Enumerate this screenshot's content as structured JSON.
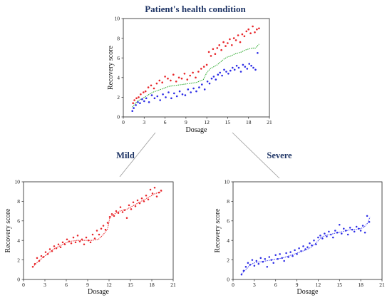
{
  "figure": {
    "title": "Patient's health condition",
    "branch_labels": [
      "Mild",
      "Severe"
    ]
  },
  "colors": {
    "mild_points": "#e8262a",
    "mild_fit": "#e8262a",
    "severe_points": "#2c2ce6",
    "severe_fit": "#4a4aef",
    "overall_fit": "#2eaa2e",
    "title_text": "#1f3566"
  },
  "chart_data": [
    {
      "id": "overall",
      "type": "scatter",
      "title": "Patient's health condition",
      "xlabel": "Dosage",
      "ylabel": "Recovery score",
      "xlim": [
        0,
        21
      ],
      "ylim": [
        0,
        10
      ],
      "xticks": [
        0,
        3,
        6,
        9,
        12,
        15,
        18,
        21
      ],
      "yticks": [
        0,
        2,
        4,
        6,
        8,
        10
      ],
      "grid": false,
      "series": [
        {
          "kind": "points",
          "color": "red",
          "x": [
            1.4,
            1.6,
            1.9,
            2.2,
            2.5,
            2.9,
            3.2,
            3.6,
            4.0,
            4.4,
            4.8,
            5.2,
            5.6,
            6.0,
            6.4,
            6.8,
            7.2,
            7.6,
            8.0,
            8.4,
            8.8,
            9.2,
            9.6,
            10.0,
            10.4,
            10.8,
            11.2,
            11.6,
            12.0,
            12.3,
            12.6,
            12.9,
            13.2,
            13.5,
            13.8,
            14.1,
            14.4,
            14.7,
            15.0,
            15.3,
            15.6,
            15.9,
            16.2,
            16.5,
            16.8,
            17.1,
            17.4,
            17.7,
            18.0,
            18.3,
            18.6,
            18.9,
            19.2,
            19.5
          ],
          "y": [
            1.4,
            1.7,
            1.9,
            2.0,
            2.3,
            2.5,
            2.6,
            3.0,
            3.2,
            2.9,
            3.4,
            3.7,
            3.5,
            4.1,
            3.9,
            3.7,
            4.3,
            3.6,
            4.0,
            3.9,
            4.4,
            3.8,
            4.2,
            4.5,
            4.0,
            4.6,
            4.9,
            5.1,
            5.3,
            6.6,
            6.2,
            6.9,
            6.4,
            7.0,
            7.3,
            6.8,
            7.6,
            7.2,
            7.5,
            7.9,
            7.3,
            8.0,
            7.8,
            8.3,
            7.6,
            8.4,
            8.2,
            8.7,
            8.9,
            8.5,
            9.2,
            8.6,
            8.9,
            9.0
          ]
        },
        {
          "kind": "points",
          "color": "blue",
          "x": [
            1.3,
            1.5,
            1.8,
            2.1,
            2.4,
            2.7,
            3.0,
            3.3,
            3.7,
            4.1,
            4.5,
            4.9,
            5.3,
            5.7,
            6.1,
            6.5,
            6.9,
            7.3,
            7.7,
            8.1,
            8.5,
            8.9,
            9.3,
            9.7,
            10.1,
            10.5,
            10.9,
            11.3,
            11.7,
            12.1,
            12.4,
            12.7,
            13.0,
            13.3,
            13.6,
            13.9,
            14.2,
            14.5,
            14.8,
            15.1,
            15.4,
            15.7,
            16.0,
            16.3,
            16.6,
            16.9,
            17.2,
            17.5,
            17.8,
            18.1,
            18.4,
            18.7,
            19.0,
            19.3
          ],
          "y": [
            0.6,
            0.9,
            1.2,
            1.5,
            1.4,
            1.8,
            1.6,
            1.9,
            1.5,
            2.2,
            1.9,
            2.1,
            1.7,
            2.3,
            2.0,
            2.5,
            1.9,
            2.4,
            2.1,
            2.6,
            2.3,
            2.2,
            2.8,
            2.5,
            2.9,
            2.6,
            3.0,
            3.3,
            2.8,
            3.6,
            3.4,
            3.9,
            4.1,
            3.8,
            4.3,
            4.5,
            4.2,
            4.8,
            4.6,
            4.4,
            4.7,
            5.0,
            4.8,
            5.2,
            5.0,
            4.6,
            5.3,
            5.1,
            4.9,
            5.4,
            5.2,
            5.0,
            4.8,
            6.5
          ]
        },
        {
          "kind": "fit",
          "color": "green",
          "x": [
            1.3,
            2.0,
            2.8,
            3.5,
            4.2,
            5.0,
            5.8,
            6.5,
            7.5,
            8.5,
            9.5,
            10.5,
            11.5,
            12.0,
            12.5,
            13.0,
            13.5,
            14.0,
            14.5,
            15.0,
            15.5,
            16.0,
            16.5,
            17.0,
            17.5,
            18.0,
            18.5,
            19.0,
            19.5
          ],
          "y": [
            1.0,
            1.6,
            1.9,
            2.2,
            2.5,
            2.7,
            2.9,
            3.1,
            3.2,
            3.3,
            3.4,
            3.5,
            3.8,
            4.5,
            4.9,
            5.1,
            5.3,
            5.6,
            5.9,
            6.1,
            6.2,
            6.4,
            6.5,
            6.6,
            6.8,
            6.9,
            7.0,
            7.0,
            7.4
          ]
        }
      ]
    },
    {
      "id": "mild",
      "type": "scatter",
      "title": "",
      "xlabel": "Dosage",
      "ylabel": "Recovery score",
      "xlim": [
        0,
        21
      ],
      "ylim": [
        0,
        10
      ],
      "xticks": [
        0,
        3,
        6,
        9,
        12,
        15,
        18,
        21
      ],
      "yticks": [
        0,
        2,
        4,
        6,
        8,
        10
      ],
      "grid": false,
      "series": [
        {
          "kind": "points",
          "color": "red",
          "x": [
            1.3,
            1.6,
            1.9,
            2.2,
            2.5,
            2.8,
            3.1,
            3.4,
            3.7,
            4.0,
            4.3,
            4.6,
            4.9,
            5.2,
            5.5,
            5.8,
            6.1,
            6.4,
            6.7,
            7.0,
            7.3,
            7.6,
            7.9,
            8.2,
            8.5,
            8.8,
            9.1,
            9.4,
            9.7,
            10.0,
            10.3,
            10.6,
            10.9,
            11.2,
            11.5,
            11.8,
            12.1,
            12.4,
            12.7,
            13.0,
            13.3,
            13.6,
            13.9,
            14.2,
            14.5,
            14.8,
            15.1,
            15.4,
            15.7,
            16.0,
            16.3,
            16.6,
            16.9,
            17.2,
            17.5,
            17.8,
            18.1,
            18.4,
            18.7,
            19.0,
            19.3
          ],
          "y": [
            1.3,
            1.6,
            2.2,
            1.9,
            2.4,
            2.3,
            2.8,
            2.6,
            3.1,
            2.9,
            3.4,
            3.2,
            3.6,
            3.3,
            3.8,
            3.6,
            4.1,
            3.9,
            3.7,
            4.3,
            3.8,
            4.5,
            3.9,
            4.1,
            3.6,
            4.3,
            4.0,
            3.8,
            4.6,
            4.2,
            5.0,
            4.6,
            5.2,
            5.5,
            5.1,
            5.8,
            6.4,
            6.7,
            6.5,
            7.0,
            6.8,
            7.4,
            6.9,
            7.1,
            6.3,
            7.6,
            7.2,
            7.9,
            7.5,
            8.1,
            7.8,
            8.3,
            8.0,
            8.6,
            8.2,
            9.2,
            8.8,
            9.4,
            8.5,
            8.9,
            9.1
          ]
        },
        {
          "kind": "fit",
          "color": "red",
          "x": [
            1.3,
            2.0,
            2.8,
            3.5,
            4.2,
            5.0,
            5.8,
            6.5,
            7.5,
            8.5,
            9.5,
            10.5,
            11.2,
            11.8,
            12.1,
            12.5,
            13.0,
            13.5,
            14.0,
            14.5,
            15.0,
            15.5,
            16.0,
            16.5,
            17.0,
            17.5,
            18.0,
            18.5,
            19.0,
            19.5
          ],
          "y": [
            1.3,
            1.8,
            2.3,
            2.7,
            3.1,
            3.4,
            3.7,
            3.9,
            4.0,
            4.0,
            4.0,
            4.1,
            4.6,
            5.2,
            6.3,
            6.6,
            6.8,
            7.0,
            7.1,
            7.2,
            7.4,
            7.6,
            7.8,
            8.0,
            8.2,
            8.4,
            8.6,
            8.8,
            8.9,
            9.1
          ]
        }
      ]
    },
    {
      "id": "severe",
      "type": "scatter",
      "title": "",
      "xlabel": "Dosage",
      "ylabel": "Recovery score",
      "xlim": [
        0,
        21
      ],
      "ylim": [
        0,
        10
      ],
      "xticks": [
        0,
        3,
        6,
        9,
        12,
        15,
        18,
        21
      ],
      "yticks": [
        0,
        2,
        4,
        6,
        8,
        10
      ],
      "grid": false,
      "series": [
        {
          "kind": "points",
          "color": "blue",
          "x": [
            1.2,
            1.5,
            1.8,
            2.1,
            2.4,
            2.7,
            3.0,
            3.3,
            3.6,
            3.9,
            4.2,
            4.5,
            4.8,
            5.1,
            5.4,
            5.7,
            6.0,
            6.3,
            6.6,
            6.9,
            7.2,
            7.5,
            7.8,
            8.1,
            8.4,
            8.7,
            9.0,
            9.3,
            9.6,
            9.9,
            10.2,
            10.5,
            10.8,
            11.1,
            11.4,
            11.7,
            12.0,
            12.3,
            12.6,
            12.9,
            13.2,
            13.5,
            13.8,
            14.1,
            14.4,
            14.7,
            15.0,
            15.3,
            15.6,
            15.9,
            16.2,
            16.5,
            16.8,
            17.1,
            17.4,
            17.7,
            18.0,
            18.3,
            18.6,
            18.9,
            19.2
          ],
          "y": [
            0.5,
            0.9,
            1.3,
            1.7,
            1.5,
            2.0,
            1.4,
            1.9,
            1.6,
            2.2,
            1.8,
            2.1,
            1.3,
            2.3,
            2.0,
            1.7,
            2.5,
            2.1,
            2.6,
            2.2,
            1.9,
            2.7,
            2.3,
            2.8,
            2.4,
            3.0,
            2.6,
            3.2,
            2.9,
            3.4,
            3.1,
            3.3,
            3.7,
            3.5,
            4.0,
            3.6,
            4.3,
            4.5,
            4.2,
            4.7,
            4.4,
            4.9,
            4.6,
            4.3,
            5.0,
            4.8,
            5.6,
            4.7,
            5.2,
            5.0,
            4.6,
            5.3,
            5.1,
            4.9,
            5.4,
            5.2,
            5.0,
            5.5,
            4.8,
            6.5,
            5.9
          ]
        },
        {
          "kind": "fit",
          "color": "blue",
          "x": [
            1.2,
            1.8,
            2.4,
            3.0,
            3.8,
            4.6,
            5.4,
            6.2,
            7.0,
            7.8,
            8.6,
            9.4,
            10.2,
            11.0,
            11.8,
            12.4,
            13.0,
            13.6,
            14.2,
            14.8,
            15.4,
            16.0,
            16.6,
            17.2,
            17.8,
            18.4,
            19.0,
            19.3
          ],
          "y": [
            0.6,
            1.0,
            1.5,
            1.7,
            1.8,
            1.9,
            2.0,
            2.1,
            2.2,
            2.4,
            2.6,
            2.8,
            3.0,
            3.3,
            3.8,
            4.3,
            4.5,
            4.6,
            4.7,
            4.8,
            4.9,
            5.0,
            5.1,
            5.1,
            5.2,
            5.3,
            5.8,
            6.4
          ]
        }
      ]
    }
  ]
}
